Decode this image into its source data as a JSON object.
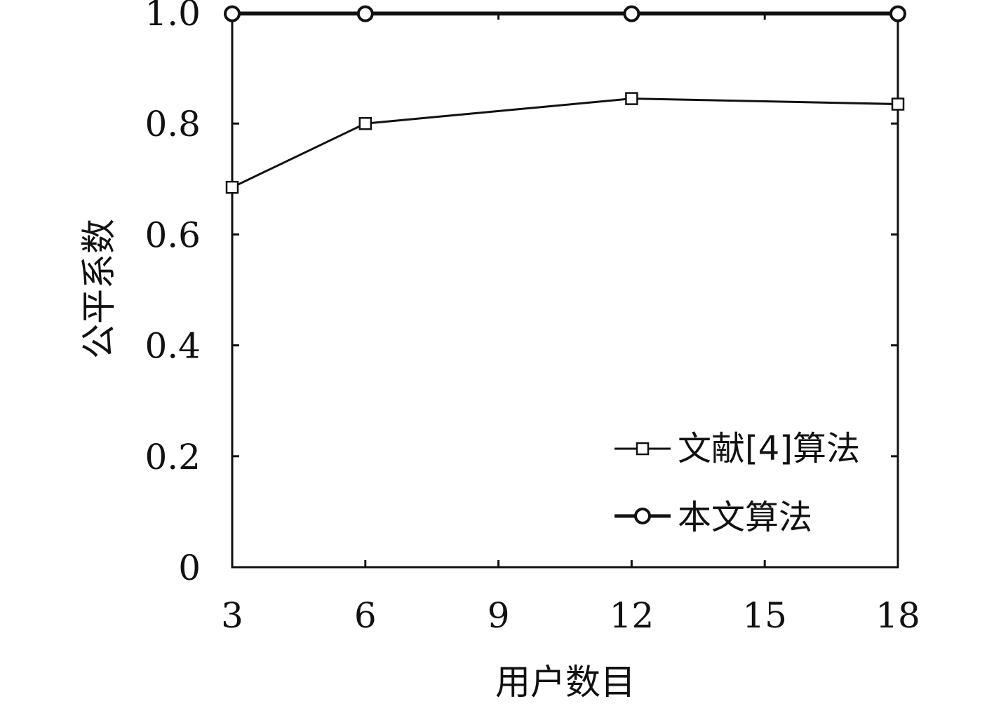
{
  "chart_data": {
    "type": "line",
    "xlabel": "用户数目",
    "ylabel": "公平系数",
    "xlim": [
      3,
      18
    ],
    "ylim": [
      0,
      1.0
    ],
    "x_ticks": [
      3,
      6,
      9,
      12,
      15,
      18
    ],
    "x_tick_labels": [
      "3",
      "6",
      "9",
      "12",
      "15",
      "18"
    ],
    "y_ticks": [
      0,
      0.2,
      0.4,
      0.6,
      0.8,
      1.0
    ],
    "y_tick_labels": [
      "0",
      "0.2",
      "0.4",
      "0.6",
      "0.8",
      "1.0"
    ],
    "grid": false,
    "legend_position": "bottom-right",
    "series": [
      {
        "name": "文献[4]算法",
        "marker": "square",
        "x": [
          3,
          6,
          12,
          18
        ],
        "values": [
          0.685,
          0.8,
          0.845,
          0.835
        ]
      },
      {
        "name": "本文算法",
        "marker": "circle",
        "x": [
          3,
          6,
          12,
          18
        ],
        "values": [
          0.998,
          0.998,
          0.998,
          0.998
        ]
      }
    ],
    "colors": {
      "axis": "#111111",
      "series": "#111111"
    }
  }
}
